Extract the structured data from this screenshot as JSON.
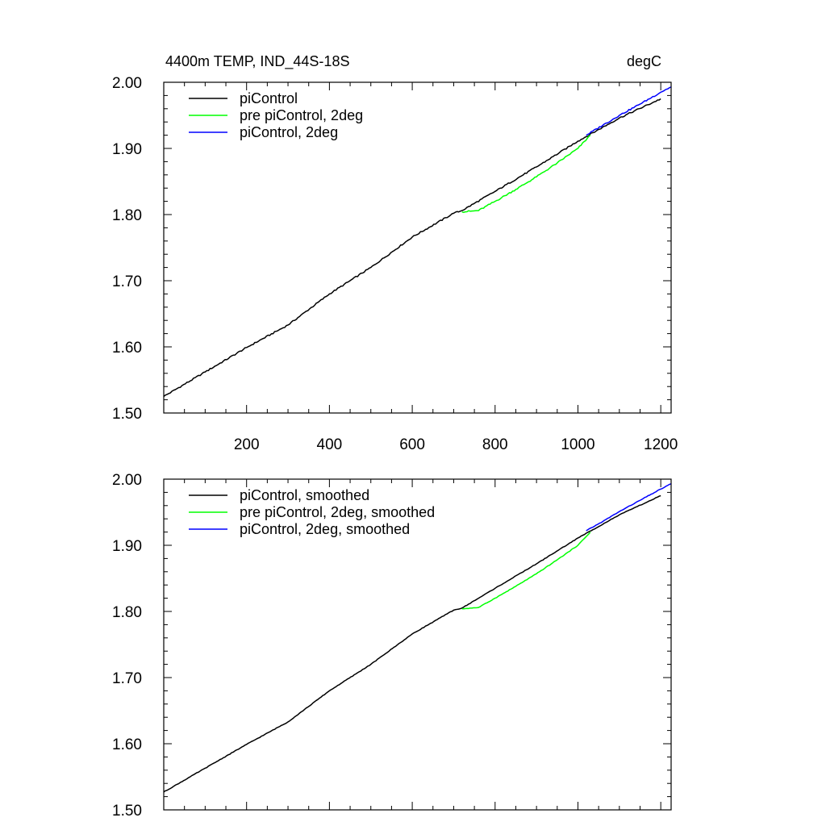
{
  "chart_data": [
    {
      "type": "line",
      "title": "4400m TEMP, IND_44S-18S",
      "units": "degC",
      "xlim": [
        0,
        1225
      ],
      "ylim": [
        1.5,
        2.0
      ],
      "x_tick_labels": [
        "200",
        "400",
        "600",
        "800",
        "1000",
        "1200"
      ],
      "y_tick_labels": [
        "1.50",
        "1.60",
        "1.70",
        "1.80",
        "1.90",
        "2.00"
      ],
      "legend_position": "top-left",
      "series": [
        {
          "name": "piControl",
          "color": "#000000",
          "points": [
            [
              0,
              1.525
            ],
            [
              100,
              1.562
            ],
            [
              200,
              1.599
            ],
            [
              300,
              1.633
            ],
            [
              400,
              1.68
            ],
            [
              500,
              1.72
            ],
            [
              600,
              1.766
            ],
            [
              700,
              1.802
            ],
            [
              720,
              1.806
            ],
            [
              800,
              1.835
            ],
            [
              900,
              1.872
            ],
            [
              1000,
              1.911
            ],
            [
              1100,
              1.946
            ],
            [
              1200,
              1.975
            ]
          ]
        },
        {
          "name": "pre piControl, 2deg",
          "color": "#00ff00",
          "points": [
            [
              720,
              1.804
            ],
            [
              760,
              1.806
            ],
            [
              800,
              1.82
            ],
            [
              850,
              1.838
            ],
            [
              900,
              1.857
            ],
            [
              950,
              1.878
            ],
            [
              1000,
              1.9
            ],
            [
              1030,
              1.92
            ]
          ]
        },
        {
          "name": "piControl, 2deg",
          "color": "#0000ff",
          "points": [
            [
              1020,
              1.92
            ],
            [
              1060,
              1.935
            ],
            [
              1100,
              1.95
            ],
            [
              1150,
              1.967
            ],
            [
              1200,
              1.985
            ],
            [
              1225,
              1.993
            ]
          ]
        }
      ]
    },
    {
      "type": "line",
      "xlim": [
        0,
        1225
      ],
      "ylim": [
        1.5,
        2.0
      ],
      "y_tick_labels": [
        "1.50",
        "1.60",
        "1.70",
        "1.80",
        "1.90",
        "2.00"
      ],
      "legend_position": "top-left",
      "series": [
        {
          "name": "piControl, smoothed",
          "color": "#000000",
          "points": [
            [
              0,
              1.527
            ],
            [
              100,
              1.563
            ],
            [
              200,
              1.599
            ],
            [
              300,
              1.633
            ],
            [
              400,
              1.68
            ],
            [
              500,
              1.72
            ],
            [
              600,
              1.766
            ],
            [
              700,
              1.802
            ],
            [
              720,
              1.805
            ],
            [
              800,
              1.835
            ],
            [
              900,
              1.872
            ],
            [
              1000,
              1.911
            ],
            [
              1100,
              1.946
            ],
            [
              1200,
              1.975
            ]
          ]
        },
        {
          "name": "pre piControl, 2deg, smoothed",
          "color": "#00ff00",
          "points": [
            [
              720,
              1.804
            ],
            [
              760,
              1.806
            ],
            [
              800,
              1.82
            ],
            [
              850,
              1.838
            ],
            [
              900,
              1.857
            ],
            [
              950,
              1.878
            ],
            [
              1000,
              1.9
            ],
            [
              1030,
              1.92
            ]
          ]
        },
        {
          "name": "piControl, 2deg, smoothed",
          "color": "#0000ff",
          "points": [
            [
              1020,
              1.922
            ],
            [
              1060,
              1.936
            ],
            [
              1100,
              1.951
            ],
            [
              1150,
              1.968
            ],
            [
              1200,
              1.985
            ],
            [
              1225,
              1.993
            ]
          ]
        }
      ]
    }
  ]
}
